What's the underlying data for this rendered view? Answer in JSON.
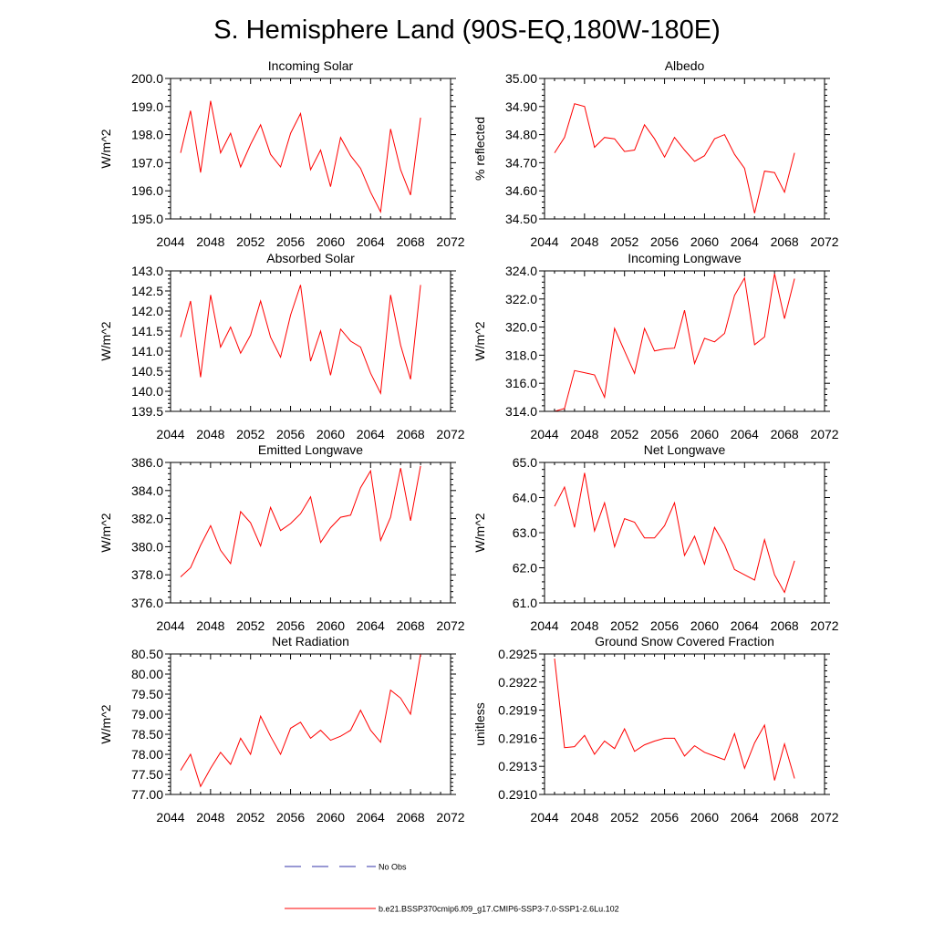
{
  "page": {
    "title": "S. Hemisphere Land (90S-EQ,180W-180E)"
  },
  "colors": {
    "model": "#ff0000",
    "obs": "#3333aa",
    "axis": "#000000"
  },
  "legend": {
    "obs_label": "No Obs",
    "model_label": "b.e21.BSSP370cmip6.f09_g17.CMIP6-SSP3-7.0-SSP1-2.6Lu.102"
  },
  "chart_data": [
    {
      "type": "line",
      "title": "Incoming Solar",
      "ylabel": "W/m^2",
      "xlim": [
        2044,
        2072
      ],
      "xticks": [
        "2044",
        "2048",
        "2052",
        "2056",
        "2060",
        "2064",
        "2068",
        "2072"
      ],
      "ylim": [
        195.0,
        200.0
      ],
      "yticks": [
        "195.0",
        "196.0",
        "197.0",
        "198.0",
        "199.0",
        "200.0"
      ],
      "x": [
        2045,
        2046,
        2047,
        2048,
        2049,
        2050,
        2051,
        2052,
        2053,
        2054,
        2055,
        2056,
        2057,
        2058,
        2059,
        2060,
        2061,
        2062,
        2063,
        2064,
        2065,
        2066,
        2067,
        2068,
        2069
      ],
      "series": [
        {
          "name": "b.e21.BSSP370cmip6.f09_g17.CMIP6-SSP3-7.0-SSP1-2.6Lu.102",
          "values": [
            197.35,
            198.85,
            196.65,
            199.2,
            197.35,
            198.05,
            196.85,
            197.65,
            198.35,
            197.3,
            196.85,
            198.05,
            198.75,
            196.75,
            197.45,
            196.15,
            197.9,
            197.25,
            196.8,
            195.95,
            195.25,
            198.2,
            196.75,
            195.85,
            198.6
          ]
        }
      ]
    },
    {
      "type": "line",
      "title": "Albedo",
      "ylabel": "% reflected",
      "xlim": [
        2044,
        2072
      ],
      "xticks": [
        "2044",
        "2048",
        "2052",
        "2056",
        "2060",
        "2064",
        "2068",
        "2072"
      ],
      "ylim": [
        34.5,
        35.0
      ],
      "yticks": [
        "34.50",
        "34.60",
        "34.70",
        "34.80",
        "34.90",
        "35.00"
      ],
      "x": [
        2045,
        2046,
        2047,
        2048,
        2049,
        2050,
        2051,
        2052,
        2053,
        2054,
        2055,
        2056,
        2057,
        2058,
        2059,
        2060,
        2061,
        2062,
        2063,
        2064,
        2065,
        2066,
        2067,
        2068,
        2069
      ],
      "series": [
        {
          "name": "b.e21.BSSP370cmip6.f09_g17.CMIP6-SSP3-7.0-SSP1-2.6Lu.102",
          "values": [
            34.735,
            34.79,
            34.91,
            34.9,
            34.755,
            34.79,
            34.785,
            34.74,
            34.745,
            34.835,
            34.785,
            34.72,
            34.79,
            34.745,
            34.705,
            34.725,
            34.785,
            34.8,
            34.73,
            34.68,
            34.52,
            34.67,
            34.665,
            34.595,
            34.735
          ]
        }
      ]
    },
    {
      "type": "line",
      "title": "Absorbed Solar",
      "ylabel": "W/m^2",
      "xlim": [
        2044,
        2072
      ],
      "xticks": [
        "2044",
        "2048",
        "2052",
        "2056",
        "2060",
        "2064",
        "2068",
        "2072"
      ],
      "ylim": [
        139.5,
        143.0
      ],
      "yticks": [
        "139.5",
        "140.0",
        "140.5",
        "141.0",
        "141.5",
        "142.0",
        "142.5",
        "143.0"
      ],
      "x": [
        2045,
        2046,
        2047,
        2048,
        2049,
        2050,
        2051,
        2052,
        2053,
        2054,
        2055,
        2056,
        2057,
        2058,
        2059,
        2060,
        2061,
        2062,
        2063,
        2064,
        2065,
        2066,
        2067,
        2068,
        2069
      ],
      "series": [
        {
          "name": "b.e21.BSSP370cmip6.f09_g17.CMIP6-SSP3-7.0-SSP1-2.6Lu.102",
          "values": [
            141.35,
            142.25,
            140.35,
            142.4,
            141.1,
            141.6,
            140.95,
            141.4,
            142.25,
            141.35,
            140.85,
            141.9,
            142.65,
            140.75,
            141.5,
            140.4,
            141.55,
            141.25,
            141.1,
            140.45,
            139.95,
            142.4,
            141.15,
            140.3,
            142.65
          ]
        }
      ]
    },
    {
      "type": "line",
      "title": "Incoming Longwave",
      "ylabel": "W/m^2",
      "xlim": [
        2044,
        2072
      ],
      "xticks": [
        "2044",
        "2048",
        "2052",
        "2056",
        "2060",
        "2064",
        "2068",
        "2072"
      ],
      "ylim": [
        314.0,
        324.0
      ],
      "yticks": [
        "314.0",
        "316.0",
        "318.0",
        "320.0",
        "322.0",
        "324.0"
      ],
      "x": [
        2045,
        2046,
        2047,
        2048,
        2049,
        2050,
        2051,
        2052,
        2053,
        2054,
        2055,
        2056,
        2057,
        2058,
        2059,
        2060,
        2061,
        2062,
        2063,
        2064,
        2065,
        2066,
        2067,
        2068,
        2069
      ],
      "series": [
        {
          "name": "b.e21.BSSP370cmip6.f09_g17.CMIP6-SSP3-7.0-SSP1-2.6Lu.102",
          "values": [
            314.0,
            314.2,
            316.9,
            316.75,
            316.6,
            315.0,
            319.9,
            318.3,
            316.7,
            319.9,
            318.3,
            318.45,
            318.5,
            321.2,
            317.4,
            319.2,
            318.95,
            319.55,
            322.25,
            323.5,
            318.75,
            319.3,
            323.8,
            320.6,
            323.45
          ]
        }
      ]
    },
    {
      "type": "line",
      "title": "Emitted Longwave",
      "ylabel": "W/m^2",
      "xlim": [
        2044,
        2072
      ],
      "xticks": [
        "2044",
        "2048",
        "2052",
        "2056",
        "2060",
        "2064",
        "2068",
        "2072"
      ],
      "ylim": [
        376.0,
        386.0
      ],
      "yticks": [
        "376.0",
        "378.0",
        "380.0",
        "382.0",
        "384.0",
        "386.0"
      ],
      "x": [
        2045,
        2046,
        2047,
        2048,
        2049,
        2050,
        2051,
        2052,
        2053,
        2054,
        2055,
        2056,
        2057,
        2058,
        2059,
        2060,
        2061,
        2062,
        2063,
        2064,
        2065,
        2066,
        2067,
        2068,
        2069
      ],
      "series": [
        {
          "name": "b.e21.BSSP370cmip6.f09_g17.CMIP6-SSP3-7.0-SSP1-2.6Lu.102",
          "values": [
            377.85,
            378.5,
            380.1,
            381.5,
            379.75,
            378.8,
            382.5,
            381.7,
            380.05,
            382.8,
            381.15,
            381.65,
            382.35,
            383.55,
            380.3,
            381.35,
            382.1,
            382.25,
            384.2,
            385.4,
            380.45,
            382.1,
            385.6,
            381.85,
            385.75
          ]
        }
      ]
    },
    {
      "type": "line",
      "title": "Net Longwave",
      "ylabel": "W/m^2",
      "xlim": [
        2044,
        2072
      ],
      "xticks": [
        "2044",
        "2048",
        "2052",
        "2056",
        "2060",
        "2064",
        "2068",
        "2072"
      ],
      "ylim": [
        61.0,
        65.0
      ],
      "yticks": [
        "61.0",
        "62.0",
        "63.0",
        "64.0",
        "65.0"
      ],
      "x": [
        2045,
        2046,
        2047,
        2048,
        2049,
        2050,
        2051,
        2052,
        2053,
        2054,
        2055,
        2056,
        2057,
        2058,
        2059,
        2060,
        2061,
        2062,
        2063,
        2064,
        2065,
        2066,
        2067,
        2068,
        2069
      ],
      "series": [
        {
          "name": "b.e21.BSSP370cmip6.f09_g17.CMIP6-SSP3-7.0-SSP1-2.6Lu.102",
          "values": [
            63.75,
            64.3,
            63.15,
            64.7,
            63.05,
            63.85,
            62.6,
            63.4,
            63.3,
            62.85,
            62.85,
            63.2,
            63.85,
            62.35,
            62.9,
            62.1,
            63.15,
            62.65,
            61.95,
            61.8,
            61.65,
            62.8,
            61.8,
            61.3,
            62.2
          ]
        }
      ]
    },
    {
      "type": "line",
      "title": "Net Radiation",
      "ylabel": "W/m^2",
      "xlim": [
        2044,
        2072
      ],
      "xticks": [
        "2044",
        "2048",
        "2052",
        "2056",
        "2060",
        "2064",
        "2068",
        "2072"
      ],
      "ylim": [
        77.0,
        80.5
      ],
      "yticks": [
        "77.00",
        "77.50",
        "78.00",
        "78.50",
        "79.00",
        "79.50",
        "80.00",
        "80.50"
      ],
      "x": [
        2045,
        2046,
        2047,
        2048,
        2049,
        2050,
        2051,
        2052,
        2053,
        2054,
        2055,
        2056,
        2057,
        2058,
        2059,
        2060,
        2061,
        2062,
        2063,
        2064,
        2065,
        2066,
        2067,
        2068,
        2069
      ],
      "series": [
        {
          "name": "b.e21.BSSP370cmip6.f09_g17.CMIP6-SSP3-7.0-SSP1-2.6Lu.102",
          "values": [
            77.6,
            78.0,
            77.2,
            77.65,
            78.05,
            77.75,
            78.4,
            78.0,
            78.95,
            78.45,
            78.0,
            78.65,
            78.8,
            78.4,
            78.6,
            78.35,
            78.45,
            78.6,
            79.1,
            78.6,
            78.3,
            79.6,
            79.4,
            79.0,
            80.5
          ]
        }
      ]
    },
    {
      "type": "line",
      "title": "Ground Snow Covered Fraction",
      "ylabel": "unitless",
      "xlim": [
        2044,
        2072
      ],
      "xticks": [
        "2044",
        "2048",
        "2052",
        "2056",
        "2060",
        "2064",
        "2068",
        "2072"
      ],
      "ylim": [
        0.291,
        0.2925
      ],
      "yticks": [
        "0.2910",
        "0.2913",
        "0.2916",
        "0.2919",
        "0.2922",
        "0.2925"
      ],
      "x": [
        2045,
        2046,
        2047,
        2048,
        2049,
        2050,
        2051,
        2052,
        2053,
        2054,
        2055,
        2056,
        2057,
        2058,
        2059,
        2060,
        2061,
        2062,
        2063,
        2064,
        2065,
        2066,
        2067,
        2068,
        2069
      ],
      "series": [
        {
          "name": "b.e21.BSSP370cmip6.f09_g17.CMIP6-SSP3-7.0-SSP1-2.6Lu.102",
          "values": [
            0.29245,
            0.2915,
            0.29151,
            0.29163,
            0.29143,
            0.29157,
            0.29149,
            0.2917,
            0.29146,
            0.29153,
            0.29157,
            0.2916,
            0.2916,
            0.29141,
            0.29152,
            0.29145,
            0.29141,
            0.29137,
            0.29165,
            0.29128,
            0.29155,
            0.29174,
            0.29115,
            0.29154,
            0.29117
          ]
        }
      ]
    }
  ]
}
